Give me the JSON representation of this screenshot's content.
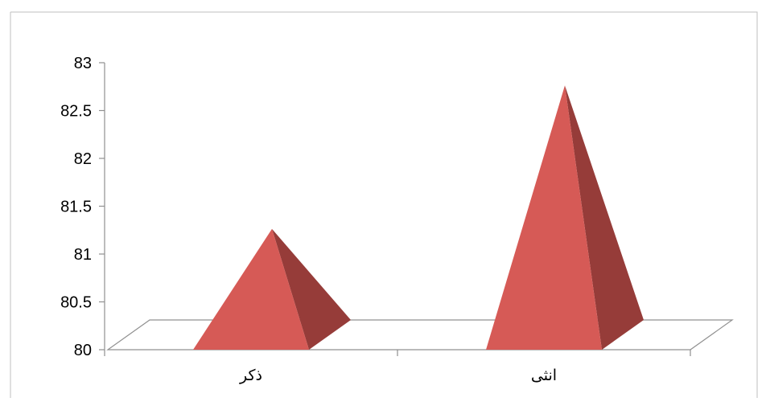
{
  "chart_data": {
    "type": "bar",
    "style": "3d-pyramid",
    "categories": [
      "ذكر",
      "انثى"
    ],
    "values": [
      81.2,
      82.7
    ],
    "title": "",
    "xlabel": "",
    "ylabel": "",
    "ylim": [
      80,
      83
    ],
    "yticks": [
      "80",
      "80.5",
      "81",
      "81.5",
      "82",
      "82.5",
      "83"
    ],
    "grid": false,
    "legend": "none",
    "colors": {
      "pyramid_front": "#d65a56",
      "pyramid_side": "#963c39",
      "floor_line": "#909090",
      "axis_line": "#909090",
      "frame": "#bfbfbf"
    }
  }
}
